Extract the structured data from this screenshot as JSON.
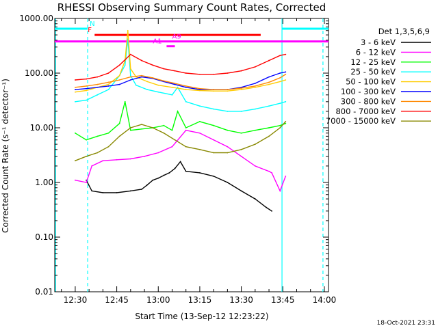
{
  "chart_data": {
    "type": "line",
    "title": "RHESSI Observing Summary Count Rates, Corrected",
    "xlabel": "Start Time (13-Sep-12 12:23:22)",
    "ylabel": "Corrected Count Rate (s⁻¹ detector⁻¹)",
    "yscale": "log",
    "ylim": [
      0.01,
      1000
    ],
    "x_range_minutes_after_1230": [
      -7.4,
      91.5
    ],
    "x_ticks": [
      {
        "t": 0,
        "label": "12:30"
      },
      {
        "t": 15,
        "label": "12:45"
      },
      {
        "t": 30,
        "label": "13:00"
      },
      {
        "t": 45,
        "label": "13:15"
      },
      {
        "t": 60,
        "label": "13:30"
      },
      {
        "t": 75,
        "label": "13:45"
      },
      {
        "t": 90,
        "label": "14:00"
      }
    ],
    "y_ticks": [
      {
        "v": 0.01,
        "label": "0.01"
      },
      {
        "v": 0.1,
        "label": "0.10"
      },
      {
        "v": 1,
        "label": "1.00"
      },
      {
        "v": 10,
        "label": "10.00"
      },
      {
        "v": 100,
        "label": "100.00"
      },
      {
        "v": 1000,
        "label": "1000.00"
      }
    ],
    "legend_title": "Det 1,3,5,6,9",
    "legend_position": "right",
    "series": [
      {
        "name": "3 - 6 keV",
        "color": "#000000",
        "x": [
          4,
          6,
          10,
          15,
          20,
          24,
          26,
          28,
          30,
          32,
          34,
          36,
          38,
          40,
          45,
          50,
          55,
          60,
          65,
          69,
          71
        ],
        "y": [
          1.1,
          0.7,
          0.65,
          0.65,
          0.7,
          0.75,
          0.9,
          1.1,
          1.2,
          1.35,
          1.5,
          1.8,
          2.4,
          1.6,
          1.5,
          1.3,
          1.0,
          0.7,
          0.5,
          0.35,
          0.3
        ]
      },
      {
        "name": "6 - 12 keV",
        "color": "#ff00ff",
        "x": [
          0,
          4,
          6,
          10,
          15,
          20,
          25,
          30,
          35,
          40,
          45,
          50,
          55,
          60,
          65,
          70,
          71,
          74,
          76
        ],
        "y": [
          1.1,
          1.0,
          2.0,
          2.5,
          2.6,
          2.7,
          3.0,
          3.5,
          4.5,
          9.0,
          8.0,
          6.0,
          4.5,
          3.0,
          2.0,
          1.6,
          1.5,
          0.7,
          1.3
        ]
      },
      {
        "name": "12 - 25 keV",
        "color": "#00ff00",
        "x": [
          0,
          4,
          8,
          12,
          16,
          18,
          20,
          24,
          28,
          32,
          35,
          37,
          40,
          45,
          50,
          55,
          60,
          65,
          70,
          74,
          76
        ],
        "y": [
          8.0,
          6.0,
          7.0,
          8.0,
          12,
          30,
          9.0,
          9.5,
          10,
          11,
          9.0,
          20,
          10,
          13,
          11,
          9.0,
          8.0,
          9.0,
          10,
          11,
          12
        ]
      },
      {
        "name": "25 - 50 keV",
        "color": "#00ffff",
        "x": [
          0,
          4,
          8,
          12,
          16,
          18,
          19,
          20,
          22,
          26,
          30,
          35,
          37,
          40,
          45,
          50,
          55,
          60,
          65,
          70,
          74,
          76
        ],
        "y": [
          30,
          32,
          40,
          50,
          90,
          140,
          420,
          90,
          60,
          50,
          45,
          40,
          55,
          30,
          25,
          22,
          20,
          20,
          22,
          25,
          28,
          30
        ]
      },
      {
        "name": "50 - 100 keV",
        "color": "#ffcc00",
        "x": [
          0,
          4,
          8,
          12,
          16,
          18,
          19,
          20,
          22,
          26,
          30,
          35,
          40,
          45,
          50,
          55,
          60,
          65,
          70,
          74,
          76
        ],
        "y": [
          45,
          48,
          55,
          62,
          90,
          170,
          600,
          120,
          85,
          70,
          60,
          55,
          50,
          48,
          47,
          47,
          50,
          55,
          62,
          70,
          75
        ]
      },
      {
        "name": "100 - 300 keV",
        "color": "#0000ff",
        "x": [
          0,
          4,
          8,
          12,
          16,
          20,
          24,
          28,
          32,
          36,
          40,
          45,
          50,
          55,
          60,
          65,
          70,
          74,
          76
        ],
        "y": [
          50,
          52,
          55,
          58,
          62,
          75,
          85,
          80,
          70,
          62,
          55,
          50,
          50,
          50,
          55,
          65,
          85,
          100,
          105
        ]
      },
      {
        "name": "300 - 800 keV",
        "color": "#ff8800",
        "x": [
          0,
          4,
          8,
          12,
          16,
          20,
          24,
          28,
          32,
          36,
          40,
          45,
          50,
          55,
          60,
          65,
          70,
          74,
          76
        ],
        "y": [
          55,
          58,
          62,
          68,
          75,
          85,
          90,
          82,
          72,
          65,
          58,
          52,
          50,
          50,
          53,
          58,
          68,
          82,
          95
        ]
      },
      {
        "name": "7000 - 15000 keV",
        "color": "#888800",
        "x": [
          0,
          4,
          8,
          12,
          16,
          20,
          24,
          28,
          32,
          36,
          40,
          45,
          50,
          55,
          60,
          65,
          70,
          74,
          76
        ],
        "y": [
          2.5,
          3.0,
          3.5,
          4.5,
          7.0,
          10,
          11.5,
          10,
          8.0,
          6.0,
          4.5,
          4.0,
          3.5,
          3.5,
          4.0,
          5.0,
          7.0,
          10,
          13
        ]
      },
      {
        "name": "800 - 7000 keV",
        "color": "#ff0000",
        "x": [
          0,
          4,
          8,
          12,
          16,
          20,
          24,
          28,
          32,
          36,
          40,
          45,
          50,
          55,
          60,
          65,
          70,
          74,
          76
        ],
        "y": [
          75,
          78,
          85,
          100,
          140,
          220,
          170,
          140,
          120,
          110,
          100,
          95,
          95,
          100,
          110,
          130,
          170,
          210,
          220
        ]
      }
    ],
    "legend_order": [
      "3 - 6 keV",
      "6 - 12 keV",
      "12 - 25 keV",
      "25 - 50 keV",
      "50 - 100 keV",
      "100 - 300 keV",
      "300 - 800 keV",
      "800 - 7000 keV",
      "7000 - 15000 keV"
    ],
    "intervals": [
      {
        "label": "N",
        "color": "#00ffff",
        "y_value": 650,
        "segments": [
          [
            -7.4,
            4.5
          ],
          [
            74.7,
            91.5
          ]
        ]
      },
      {
        "label": "F",
        "color": "#ff0000",
        "y_value": 500,
        "segments": [
          [
            7,
            67
          ]
        ]
      },
      {
        "label": "A9",
        "color": "#ff00ff",
        "y_value": 380,
        "segments": [
          [
            -7.4,
            91.5
          ]
        ]
      },
      {
        "label": "A1",
        "color": "#ff00ff",
        "y_value": 310,
        "segments": [
          [
            33,
            36
          ]
        ]
      }
    ],
    "vertical_lines": [
      {
        "t": 4.5,
        "color": "#00ffff",
        "style": "dashed"
      },
      {
        "t": 74.7,
        "color": "#00ffff",
        "style": "solid"
      },
      {
        "t": 89.5,
        "color": "#00ffff",
        "style": "dashed"
      },
      {
        "t": -7.1,
        "color": "#00ffff",
        "style": "solid"
      }
    ]
  },
  "footer": {
    "timestamp": "18-Oct-2021 23:31"
  }
}
